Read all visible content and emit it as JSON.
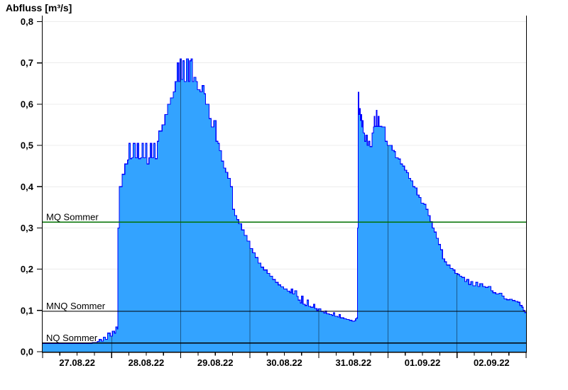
{
  "title": "Abfluss [m³/s]",
  "chart_data": {
    "type": "area",
    "title": "Abfluss [m³/s]",
    "y_axis": {
      "min": 0,
      "max": 0.8,
      "tick_step": 0.1,
      "tick_labels": [
        "0,0",
        "0,1",
        "0,2",
        "0,3",
        "0,4",
        "0,5",
        "0,6",
        "0,7",
        "0,8"
      ]
    },
    "x_axis": {
      "days": 7,
      "minor_ticks_per_day": 4,
      "tick_labels": [
        "27.08.22",
        "28.08.22",
        "29.08.22",
        "30.08.22",
        "31.08.22",
        "01.09.22",
        "02.09.22"
      ]
    },
    "grid": {
      "horizontal_color": "#ececec",
      "day_divider_color": "#000000",
      "day_divider_opacity": 0.45
    },
    "reference_lines": [
      {
        "label": "MQ Sommer",
        "value": 0.314,
        "color": "#007000"
      },
      {
        "label": "MNQ Sommer",
        "value": 0.098,
        "color": "#000000"
      },
      {
        "label": "NQ Sommer",
        "value": 0.021,
        "color": "#000000"
      }
    ],
    "series": [
      {
        "name": "Abfluss",
        "unit": "m³/s",
        "interpolation": "step-after",
        "line_color": "#0000ff",
        "fill_color": "#33a3ff",
        "points": [
          [
            0.0,
            0.02
          ],
          [
            0.41,
            0.02
          ],
          [
            0.72,
            0.022
          ],
          [
            0.79,
            0.025
          ],
          [
            0.82,
            0.03
          ],
          [
            0.85,
            0.026
          ],
          [
            0.88,
            0.035
          ],
          [
            0.91,
            0.03
          ],
          [
            0.94,
            0.045
          ],
          [
            0.98,
            0.038
          ],
          [
            1.01,
            0.05
          ],
          [
            1.04,
            0.045
          ],
          [
            1.06,
            0.06
          ],
          [
            1.08,
            0.055
          ],
          [
            1.09,
            0.3
          ],
          [
            1.11,
            0.4
          ],
          [
            1.15,
            0.43
          ],
          [
            1.19,
            0.455
          ],
          [
            1.23,
            0.465
          ],
          [
            1.25,
            0.505
          ],
          [
            1.27,
            0.468
          ],
          [
            1.29,
            0.47
          ],
          [
            1.31,
            0.505
          ],
          [
            1.34,
            0.47
          ],
          [
            1.37,
            0.505
          ],
          [
            1.39,
            0.468
          ],
          [
            1.42,
            0.47
          ],
          [
            1.44,
            0.505
          ],
          [
            1.46,
            0.47
          ],
          [
            1.49,
            0.505
          ],
          [
            1.51,
            0.455
          ],
          [
            1.54,
            0.47
          ],
          [
            1.56,
            0.505
          ],
          [
            1.58,
            0.47
          ],
          [
            1.61,
            0.505
          ],
          [
            1.63,
            0.468
          ],
          [
            1.66,
            0.51
          ],
          [
            1.68,
            0.535
          ],
          [
            1.73,
            0.55
          ],
          [
            1.77,
            0.575
          ],
          [
            1.81,
            0.6
          ],
          [
            1.85,
            0.615
          ],
          [
            1.89,
            0.63
          ],
          [
            1.92,
            0.655
          ],
          [
            1.95,
            0.7
          ],
          [
            1.97,
            0.655
          ],
          [
            1.99,
            0.71
          ],
          [
            2.01,
            0.66
          ],
          [
            2.03,
            0.705
          ],
          [
            2.05,
            0.655
          ],
          [
            2.08,
            0.71
          ],
          [
            2.11,
            0.655
          ],
          [
            2.13,
            0.705
          ],
          [
            2.15,
            0.71
          ],
          [
            2.17,
            0.655
          ],
          [
            2.19,
            0.665
          ],
          [
            2.22,
            0.655
          ],
          [
            2.24,
            0.635
          ],
          [
            2.28,
            0.63
          ],
          [
            2.31,
            0.645
          ],
          [
            2.34,
            0.625
          ],
          [
            2.36,
            0.6
          ],
          [
            2.39,
            0.6
          ],
          [
            2.41,
            0.565
          ],
          [
            2.44,
            0.545
          ],
          [
            2.48,
            0.56
          ],
          [
            2.51,
            0.51
          ],
          [
            2.54,
            0.505
          ],
          [
            2.56,
            0.487
          ],
          [
            2.59,
            0.462
          ],
          [
            2.62,
            0.445
          ],
          [
            2.65,
            0.435
          ],
          [
            2.68,
            0.42
          ],
          [
            2.72,
            0.4
          ],
          [
            2.75,
            0.345
          ],
          [
            2.78,
            0.33
          ],
          [
            2.81,
            0.32
          ],
          [
            2.84,
            0.31
          ],
          [
            2.88,
            0.295
          ],
          [
            2.92,
            0.282
          ],
          [
            2.96,
            0.268
          ],
          [
            3.0,
            0.25
          ],
          [
            3.04,
            0.24
          ],
          [
            3.08,
            0.228
          ],
          [
            3.12,
            0.215
          ],
          [
            3.16,
            0.205
          ],
          [
            3.2,
            0.198
          ],
          [
            3.25,
            0.19
          ],
          [
            3.29,
            0.183
          ],
          [
            3.33,
            0.175
          ],
          [
            3.37,
            0.168
          ],
          [
            3.41,
            0.162
          ],
          [
            3.45,
            0.157
          ],
          [
            3.49,
            0.152
          ],
          [
            3.54,
            0.147
          ],
          [
            3.58,
            0.143
          ],
          [
            3.6,
            0.152
          ],
          [
            3.62,
            0.14
          ],
          [
            3.65,
            0.148
          ],
          [
            3.68,
            0.134
          ],
          [
            3.7,
            0.125
          ],
          [
            3.73,
            0.118
          ],
          [
            3.75,
            0.135
          ],
          [
            3.77,
            0.115
          ],
          [
            3.8,
            0.112
          ],
          [
            3.83,
            0.125
          ],
          [
            3.85,
            0.11
          ],
          [
            3.88,
            0.108
          ],
          [
            3.92,
            0.115
          ],
          [
            3.94,
            0.105
          ],
          [
            3.97,
            0.1
          ],
          [
            3.99,
            0.104
          ],
          [
            4.03,
            0.097
          ],
          [
            4.07,
            0.094
          ],
          [
            4.09,
            0.099
          ],
          [
            4.11,
            0.092
          ],
          [
            4.15,
            0.09
          ],
          [
            4.19,
            0.088
          ],
          [
            4.21,
            0.094
          ],
          [
            4.23,
            0.086
          ],
          [
            4.27,
            0.084
          ],
          [
            4.29,
            0.09
          ],
          [
            4.31,
            0.082
          ],
          [
            4.36,
            0.08
          ],
          [
            4.4,
            0.078
          ],
          [
            4.44,
            0.076
          ],
          [
            4.48,
            0.074
          ],
          [
            4.51,
            0.075
          ],
          [
            4.53,
            0.08
          ],
          [
            4.55,
            0.082
          ],
          [
            4.56,
            0.3
          ],
          [
            4.57,
            0.629
          ],
          [
            4.58,
            0.575
          ],
          [
            4.59,
            0.589
          ],
          [
            4.6,
            0.56
          ],
          [
            4.61,
            0.575
          ],
          [
            4.62,
            0.545
          ],
          [
            4.63,
            0.56
          ],
          [
            4.64,
            0.53
          ],
          [
            4.66,
            0.51
          ],
          [
            4.68,
            0.525
          ],
          [
            4.7,
            0.5
          ],
          [
            4.72,
            0.51
          ],
          [
            4.74,
            0.497
          ],
          [
            4.77,
            0.53
          ],
          [
            4.79,
            0.545
          ],
          [
            4.8,
            0.57
          ],
          [
            4.81,
            0.546
          ],
          [
            4.83,
            0.585
          ],
          [
            4.84,
            0.546
          ],
          [
            4.86,
            0.57
          ],
          [
            4.87,
            0.546
          ],
          [
            4.91,
            0.545
          ],
          [
            4.95,
            0.545
          ],
          [
            4.96,
            0.51
          ],
          [
            4.99,
            0.5
          ],
          [
            5.03,
            0.5
          ],
          [
            5.06,
            0.488
          ],
          [
            5.09,
            0.485
          ],
          [
            5.11,
            0.47
          ],
          [
            5.15,
            0.467
          ],
          [
            5.18,
            0.455
          ],
          [
            5.21,
            0.45
          ],
          [
            5.24,
            0.44
          ],
          [
            5.27,
            0.434
          ],
          [
            5.3,
            0.42
          ],
          [
            5.33,
            0.414
          ],
          [
            5.36,
            0.4
          ],
          [
            5.39,
            0.397
          ],
          [
            5.42,
            0.38
          ],
          [
            5.45,
            0.374
          ],
          [
            5.48,
            0.36
          ],
          [
            5.52,
            0.357
          ],
          [
            5.55,
            0.345
          ],
          [
            5.58,
            0.33
          ],
          [
            5.61,
            0.315
          ],
          [
            5.64,
            0.3
          ],
          [
            5.67,
            0.29
          ],
          [
            5.7,
            0.275
          ],
          [
            5.73,
            0.26
          ],
          [
            5.76,
            0.247
          ],
          [
            5.79,
            0.225
          ],
          [
            5.82,
            0.218
          ],
          [
            5.85,
            0.21
          ],
          [
            5.9,
            0.202
          ],
          [
            5.94,
            0.198
          ],
          [
            5.97,
            0.19
          ],
          [
            6.01,
            0.187
          ],
          [
            6.04,
            0.183
          ],
          [
            6.07,
            0.18
          ],
          [
            6.11,
            0.17
          ],
          [
            6.14,
            0.175
          ],
          [
            6.17,
            0.163
          ],
          [
            6.2,
            0.17
          ],
          [
            6.23,
            0.16
          ],
          [
            6.27,
            0.168
          ],
          [
            6.3,
            0.158
          ],
          [
            6.33,
            0.165
          ],
          [
            6.37,
            0.158
          ],
          [
            6.41,
            0.156
          ],
          [
            6.45,
            0.158
          ],
          [
            6.49,
            0.148
          ],
          [
            6.52,
            0.143
          ],
          [
            6.56,
            0.14
          ],
          [
            6.61,
            0.142
          ],
          [
            6.65,
            0.135
          ],
          [
            6.68,
            0.128
          ],
          [
            6.72,
            0.126
          ],
          [
            6.76,
            0.127
          ],
          [
            6.8,
            0.124
          ],
          [
            6.84,
            0.122
          ],
          [
            6.88,
            0.12
          ],
          [
            6.91,
            0.112
          ],
          [
            6.94,
            0.108
          ],
          [
            6.96,
            0.1
          ],
          [
            6.98,
            0.095
          ]
        ]
      }
    ]
  }
}
